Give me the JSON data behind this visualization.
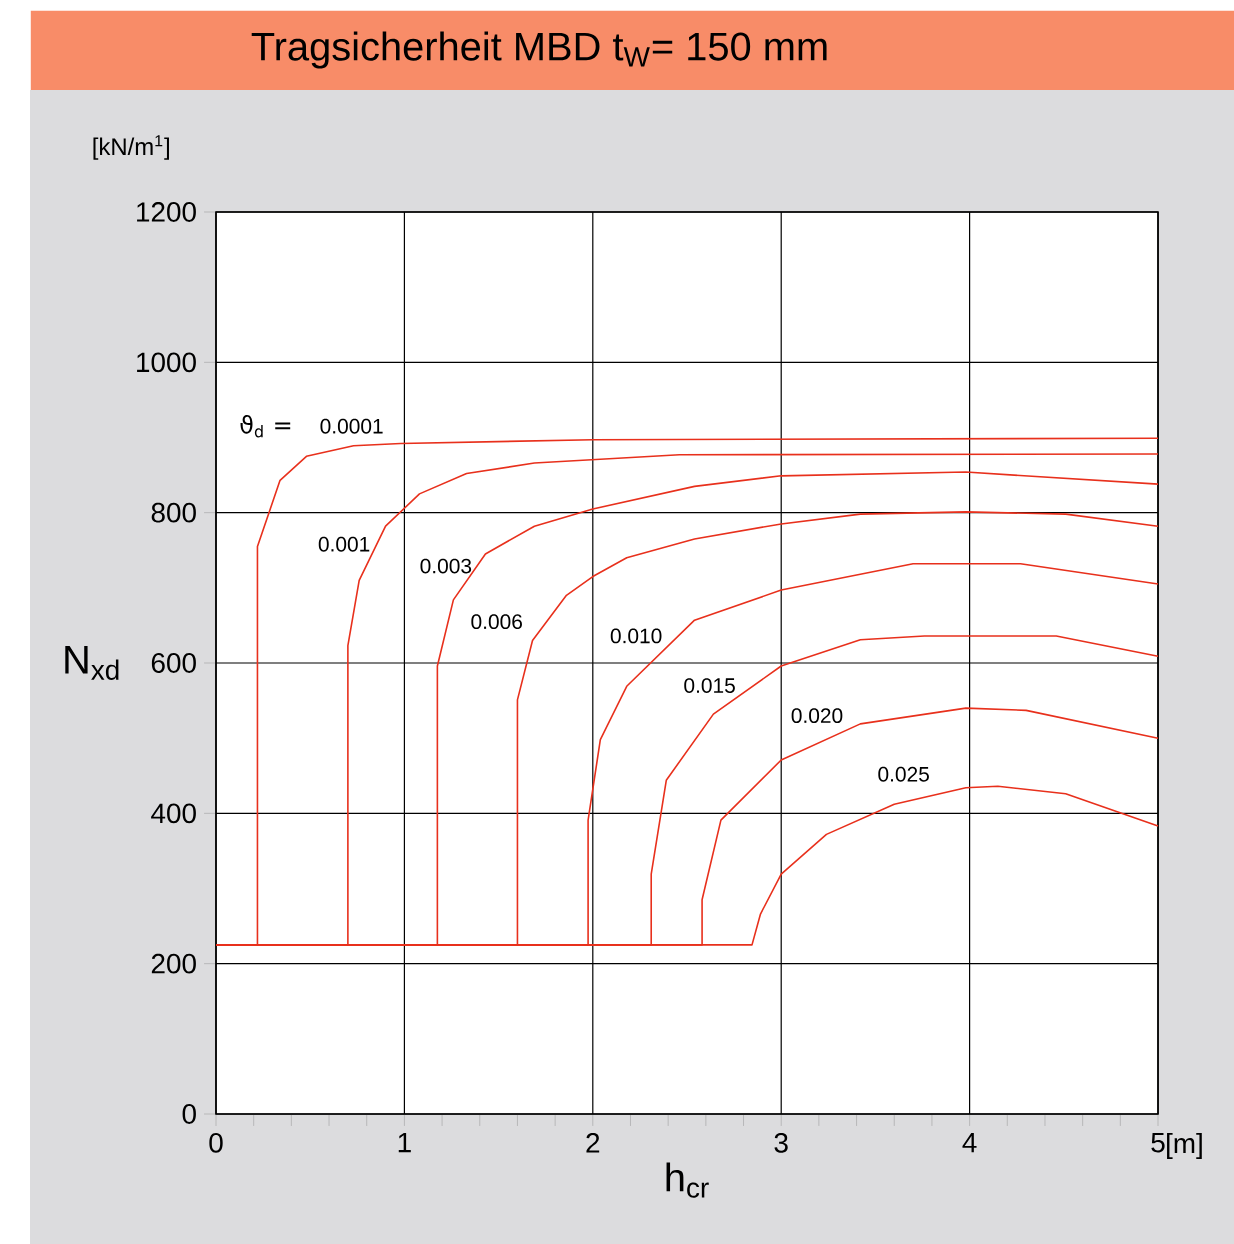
{
  "chart_data": {
    "type": "line",
    "title": "Tragsicherheit  MBD    t$_{W}$= 150 mm",
    "xlabel": "h$_{cr}$",
    "ylabel": "N$_{xd}$",
    "annotations": [
      "[kN/m$^{1}$]",
      "[m]",
      "ϑ$_{d}$ ="
    ],
    "xlim": [
      0,
      5
    ],
    "ylim": [
      0,
      1200
    ],
    "xticks": [
      0,
      1,
      2,
      3,
      4,
      5
    ],
    "yticks": [
      0,
      200,
      400,
      600,
      800,
      1000,
      1200
    ],
    "grid": true,
    "marker": "none",
    "line_style": "solid",
    "series": [
      {
        "name": "0.0001",
        "color": "#e8301c",
        "x": [
          0,
          0.22,
          0.22,
          0.34,
          0.48,
          0.73,
          0.98,
          2,
          5
        ],
        "values": [
          225,
          225,
          755,
          843,
          875,
          889,
          892,
          897,
          899
        ]
      },
      {
        "name": "0.001",
        "color": "#e8301c",
        "x": [
          0,
          0.7,
          0.7,
          0.76,
          0.9,
          1.08,
          1.33,
          1.69,
          2.46,
          5
        ],
        "values": [
          225,
          225,
          623,
          710,
          782,
          825,
          852,
          866,
          877,
          878
        ]
      },
      {
        "name": "0.003",
        "color": "#e8301c",
        "x": [
          0,
          1.175,
          1.175,
          1.26,
          1.43,
          1.69,
          2.0,
          2.54,
          3.0,
          3.98,
          5
        ],
        "values": [
          225,
          225,
          596,
          684,
          745,
          782,
          805,
          835,
          849,
          854,
          838
        ]
      },
      {
        "name": "0.006",
        "color": "#e8301c",
        "x": [
          0,
          1.6,
          1.6,
          1.68,
          1.86,
          2.0,
          2.18,
          2.54,
          3.0,
          3.42,
          3.98,
          4.51,
          5
        ],
        "values": [
          225,
          225,
          551,
          630,
          690,
          715,
          740,
          765,
          785,
          798,
          801,
          798,
          782
        ]
      },
      {
        "name": "0.010",
        "color": "#e8301c",
        "x": [
          0,
          1.975,
          1.975,
          2.04,
          2.18,
          2.54,
          3.0,
          3.7,
          4.27,
          5
        ],
        "values": [
          225,
          225,
          391,
          498,
          569,
          657,
          697,
          732,
          732,
          705
        ]
      },
      {
        "name": "0.015",
        "color": "#e8301c",
        "x": [
          0,
          2.31,
          2.31,
          2.39,
          2.64,
          3.0,
          3.42,
          3.76,
          4.46,
          5
        ],
        "values": [
          225,
          225,
          319,
          444,
          532,
          596,
          631,
          636,
          636,
          609
        ]
      },
      {
        "name": "0.020",
        "color": "#e8301c",
        "x": [
          0,
          2.58,
          2.58,
          2.68,
          3.0,
          3.42,
          3.98,
          4.3,
          5
        ],
        "values": [
          225,
          225,
          285,
          391,
          471,
          519,
          540,
          537,
          500
        ]
      },
      {
        "name": "0.025",
        "color": "#e8301c",
        "x": [
          0,
          2.845,
          2.89,
          3.0,
          3.24,
          3.6,
          3.98,
          4.15,
          4.51,
          5
        ],
        "values": [
          225,
          225,
          266,
          319,
          372,
          412,
          434,
          436,
          426,
          383
        ]
      }
    ]
  }
}
